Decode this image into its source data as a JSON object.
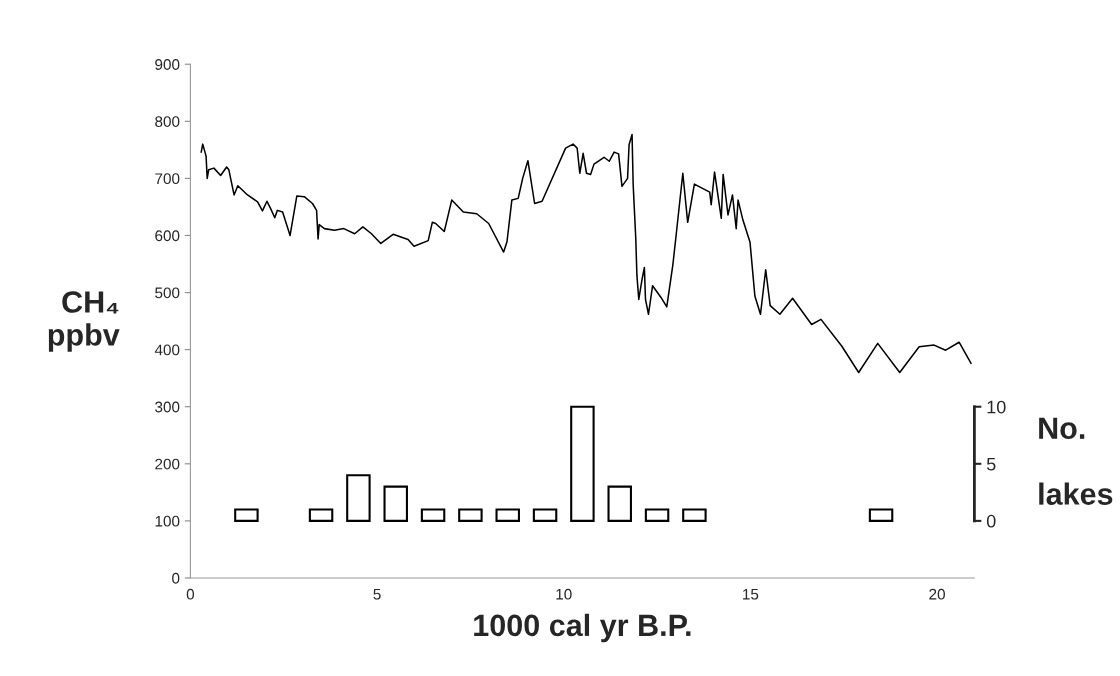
{
  "chart_data": {
    "type": "line",
    "xlabel": "1000 cal yr B.P.",
    "ylabel": "CH₄\nppbv",
    "y2label": "No.\n\nlakes",
    "xlim": [
      0,
      21
    ],
    "xticks": [
      0,
      5,
      10,
      15,
      20
    ],
    "ylim": [
      0,
      900
    ],
    "yticks": [
      0,
      100,
      200,
      300,
      400,
      500,
      600,
      700,
      800,
      900
    ],
    "y2lim": [
      -5,
      40
    ],
    "y2ticks": [
      0,
      5,
      10
    ],
    "grid": false,
    "legend": false,
    "series": [
      {
        "color": "#000000",
        "x": [
          0.29,
          0.33,
          0.42,
          0.45,
          0.49,
          0.63,
          0.81,
          0.97,
          1.03,
          1.17,
          1.27,
          1.53,
          1.8,
          1.93,
          2.05,
          2.15,
          2.26,
          2.33,
          2.47,
          2.67,
          2.85,
          3.05,
          3.27,
          3.38,
          3.42,
          3.45,
          3.59,
          3.86,
          4.11,
          4.4,
          4.62,
          4.85,
          5.1,
          5.43,
          5.83,
          5.99,
          6.37,
          6.48,
          6.57,
          6.8,
          7.0,
          7.31,
          7.67,
          7.99,
          8.39,
          8.48,
          8.61,
          8.78,
          8.9,
          9.04,
          9.22,
          9.42,
          10.05,
          10.25,
          10.36,
          10.43,
          10.52,
          10.61,
          10.72,
          10.81,
          11.08,
          11.22,
          11.35,
          11.47,
          11.56,
          11.71,
          11.75,
          11.83,
          11.86,
          11.93,
          11.96,
          12.01,
          12.1,
          12.16,
          12.19,
          12.27,
          12.38,
          12.61,
          12.76,
          12.92,
          13.01,
          13.19,
          13.32,
          13.5,
          13.91,
          13.95,
          14.04,
          14.22,
          14.27,
          14.4,
          14.52,
          14.62,
          14.67,
          14.8,
          14.99,
          15.12,
          15.27,
          15.41,
          15.53,
          15.79,
          16.13,
          16.64,
          16.89,
          17.45,
          17.9,
          18.41,
          19.0,
          19.52,
          19.92,
          20.23,
          20.59,
          20.91
        ],
        "values": [
          746,
          760,
          739,
          700,
          715,
          718,
          705,
          720,
          715,
          671,
          687,
          671,
          659,
          643,
          660,
          647,
          631,
          644,
          641,
          600,
          669,
          668,
          656,
          644,
          594,
          619,
          612,
          609,
          612,
          603,
          615,
          603,
          586,
          602,
          593,
          581,
          591,
          623,
          621,
          607,
          662,
          641,
          638,
          621,
          571,
          589,
          662,
          665,
          700,
          731,
          656,
          660,
          753,
          760,
          753,
          709,
          744,
          709,
          707,
          725,
          737,
          730,
          746,
          743,
          686,
          700,
          759,
          777,
          689,
          594,
          530,
          488,
          524,
          544,
          488,
          462,
          512,
          491,
          475,
          547,
          600,
          709,
          623,
          690,
          676,
          654,
          711,
          630,
          707,
          636,
          671,
          612,
          662,
          627,
          588,
          494,
          462,
          540,
          477,
          462,
          490,
          444,
          453,
          406,
          360,
          411,
          360,
          405,
          408,
          399,
          413,
          376
        ]
      },
      {
        "type": "bar",
        "axis": "y2",
        "color": "#ffffff",
        "x": [
          1.5,
          3.5,
          4.5,
          5.5,
          6.5,
          7.5,
          8.5,
          9.5,
          10.5,
          11.5,
          12.5,
          13.5,
          18.5
        ],
        "values": [
          1,
          1,
          4,
          3,
          1,
          1,
          1,
          1,
          10,
          3,
          1,
          1,
          1
        ]
      }
    ]
  }
}
